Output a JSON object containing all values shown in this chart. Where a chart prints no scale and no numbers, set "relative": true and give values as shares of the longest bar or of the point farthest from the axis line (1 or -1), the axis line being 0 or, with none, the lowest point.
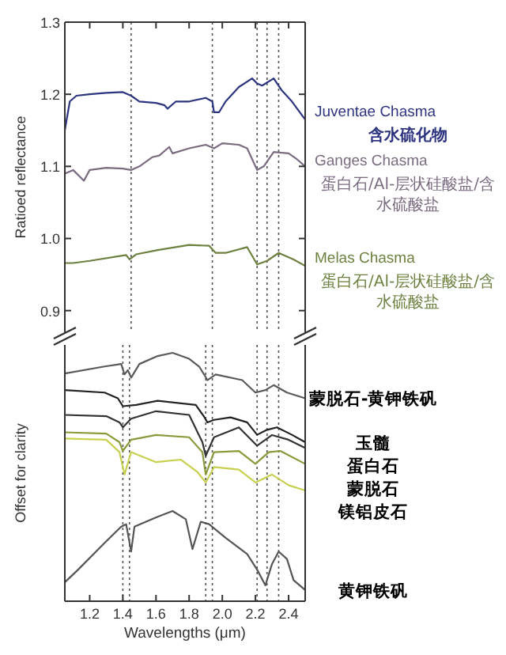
{
  "chart_data": [
    {
      "type": "line",
      "ylabel": "Ratioed reflectance",
      "xlim": [
        1.05,
        2.5
      ],
      "xticks": [
        1.2,
        1.4,
        1.6,
        1.8,
        2,
        2.2,
        2.4
      ],
      "ylim": [
        0.87,
        1.3
      ],
      "yticks": [
        0.9,
        {
          "value": 1,
          "label": "1.0"
        },
        1.1,
        1.2,
        1.3
      ],
      "tick_labels": "y",
      "line_style": "solid",
      "ref_lines": [
        {
          "axis": "x",
          "value": 1.45,
          "line_style": "dotted",
          "color": "#555555"
        },
        {
          "axis": "x",
          "value": 1.94,
          "line_style": "dotted",
          "color": "#555555"
        },
        {
          "axis": "x",
          "value": 2.21,
          "line_style": "dotted",
          "color": "#555555"
        },
        {
          "axis": "x",
          "value": 2.27,
          "line_style": "dotted",
          "color": "#555555"
        },
        {
          "axis": "x",
          "value": 2.34,
          "line_style": "dotted",
          "color": "#555555"
        }
      ],
      "annotations": [
        "含水硫化物",
        "蛋白石/Al-层状硅酸盐/含水硫酸盐",
        "蛋白石/Al-层状硅酸盐/含水硫酸盐"
      ],
      "series": [
        {
          "name": "Juventae Chasma",
          "color": "#2e3580",
          "x": [
            1.05,
            1.08,
            1.12,
            1.2,
            1.3,
            1.4,
            1.45,
            1.5,
            1.6,
            1.65,
            1.67,
            1.72,
            1.8,
            1.9,
            1.94,
            1.95,
            1.98,
            2.02,
            2.1,
            2.18,
            2.21,
            2.24,
            2.31,
            2.36,
            2.42,
            2.5
          ],
          "values": [
            1.15,
            1.19,
            1.198,
            1.2,
            1.202,
            1.203,
            1.198,
            1.19,
            1.188,
            1.185,
            1.18,
            1.19,
            1.19,
            1.195,
            1.19,
            1.175,
            1.175,
            1.19,
            1.21,
            1.222,
            1.215,
            1.212,
            1.222,
            1.205,
            1.19,
            1.165
          ]
        },
        {
          "name": "Ganges Chasma",
          "color": "#7b6b80",
          "x": [
            1.05,
            1.1,
            1.165,
            1.2,
            1.3,
            1.4,
            1.45,
            1.5,
            1.58,
            1.62,
            1.68,
            1.7,
            1.8,
            1.9,
            1.95,
            2.0,
            2.1,
            2.15,
            2.21,
            2.25,
            2.31,
            2.4,
            2.45,
            2.5
          ],
          "values": [
            1.09,
            1.095,
            1.08,
            1.095,
            1.098,
            1.097,
            1.095,
            1.1,
            1.113,
            1.115,
            1.127,
            1.118,
            1.125,
            1.13,
            1.125,
            1.132,
            1.13,
            1.125,
            1.095,
            1.1,
            1.12,
            1.118,
            1.11,
            1.1
          ]
        },
        {
          "name": "Melas Chasma",
          "color": "#6e8040",
          "x": [
            1.05,
            1.1,
            1.2,
            1.42,
            1.44,
            1.48,
            1.61,
            1.8,
            1.92,
            1.96,
            2.02,
            2.15,
            2.21,
            2.27,
            2.34,
            2.43,
            2.5
          ],
          "values": [
            0.966,
            0.966,
            0.969,
            0.977,
            0.971,
            0.978,
            0.984,
            0.991,
            0.99,
            0.98,
            0.98,
            0.988,
            0.964,
            0.969,
            0.98,
            0.971,
            0.962
          ]
        }
      ]
    },
    {
      "type": "line",
      "relative": true,
      "ylabel": "Offset for clarity",
      "xlabel": "Wavelengths (μm)",
      "xlim": [
        1.05,
        2.5
      ],
      "xticks": [
        1.2,
        1.4,
        1.6,
        1.8,
        {
          "value": 2,
          "label": "2.0"
        },
        2.2,
        2.4
      ],
      "tick_labels": "x",
      "line_style": "solid",
      "ref_lines": [
        {
          "axis": "x",
          "value": 1.4,
          "line_style": "dotted",
          "color": "#555555"
        },
        {
          "axis": "x",
          "value": 1.44,
          "line_style": "dotted",
          "color": "#555555"
        },
        {
          "axis": "x",
          "value": 1.9,
          "line_style": "dotted",
          "color": "#555555"
        },
        {
          "axis": "x",
          "value": 1.94,
          "line_style": "dotted",
          "color": "#555555"
        },
        {
          "axis": "x",
          "value": 2.21,
          "line_style": "dotted",
          "color": "#555555"
        },
        {
          "axis": "x",
          "value": 2.27,
          "line_style": "dotted",
          "color": "#555555"
        },
        {
          "axis": "x",
          "value": 2.34,
          "line_style": "dotted",
          "color": "#555555"
        }
      ],
      "series": [
        {
          "name": "蒙脱石-黄钾铁矾",
          "color": "#5a5a5a",
          "x": [
            1.05,
            1.29,
            1.39,
            1.41,
            1.43,
            1.45,
            1.5,
            1.61,
            1.7,
            1.8,
            1.86,
            1.89,
            1.91,
            1.96,
            2.12,
            2.2,
            2.26,
            2.31,
            2.39,
            2.5
          ],
          "values": [
            0.917,
            0.945,
            0.955,
            0.913,
            0.93,
            0.9,
            0.955,
            0.987,
            1.0,
            0.976,
            0.945,
            0.913,
            0.89,
            0.913,
            0.89,
            0.84,
            0.85,
            0.87,
            0.84,
            0.817
          ]
        },
        {
          "name": "玉髓",
          "color": "#222222",
          "x": [
            1.05,
            1.29,
            1.37,
            1.4,
            1.48,
            1.61,
            1.84,
            1.89,
            1.91,
            1.95,
            2.05,
            2.15,
            2.21,
            2.27,
            2.33,
            2.42,
            2.5
          ],
          "values": [
            0.85,
            0.84,
            0.817,
            0.785,
            0.79,
            0.807,
            0.79,
            0.743,
            0.72,
            0.73,
            0.74,
            0.72,
            0.67,
            0.69,
            0.7,
            0.67,
            0.64
          ]
        },
        {
          "name": "蛋白石",
          "color": "#333333",
          "x": [
            1.05,
            1.3,
            1.38,
            1.4,
            1.45,
            1.6,
            1.8,
            1.88,
            1.9,
            1.95,
            2.1,
            2.21,
            2.3,
            2.4,
            2.5
          ],
          "values": [
            0.75,
            0.745,
            0.72,
            0.7,
            0.735,
            0.765,
            0.75,
            0.64,
            0.585,
            0.66,
            0.7,
            0.626,
            0.669,
            0.65,
            0.617
          ]
        },
        {
          "name": "蒙脱石",
          "color": "#8a9a3a",
          "x": [
            1.05,
            1.3,
            1.38,
            1.4,
            1.45,
            1.6,
            1.8,
            1.88,
            1.9,
            1.95,
            2.1,
            2.2,
            2.28,
            2.35,
            2.5
          ],
          "values": [
            0.68,
            0.675,
            0.64,
            0.605,
            0.65,
            0.669,
            0.66,
            0.6,
            0.51,
            0.6,
            0.605,
            0.553,
            0.6,
            0.605,
            0.553
          ]
        },
        {
          "name": "镁铝皮石",
          "color": "#c8d050",
          "x": [
            1.05,
            1.3,
            1.38,
            1.41,
            1.45,
            1.6,
            1.75,
            1.85,
            1.9,
            1.95,
            2.1,
            2.2,
            2.3,
            2.4,
            2.5
          ],
          "values": [
            0.655,
            0.65,
            0.6,
            0.51,
            0.6,
            0.56,
            0.57,
            0.52,
            0.478,
            0.54,
            0.53,
            0.478,
            0.51,
            0.467,
            0.446
          ]
        },
        {
          "name": "黄钾铁矾",
          "color": "#555555",
          "x": [
            1.05,
            1.13,
            1.29,
            1.39,
            1.42,
            1.45,
            1.47,
            1.61,
            1.7,
            1.78,
            1.82,
            1.87,
            1.92,
            2.02,
            2.15,
            2.21,
            2.26,
            2.3,
            2.34,
            2.39,
            2.43,
            2.5
          ],
          "values": [
            0.076,
            0.127,
            0.235,
            0.3,
            0.31,
            0.2,
            0.3,
            0.34,
            0.363,
            0.33,
            0.21,
            0.32,
            0.31,
            0.255,
            0.19,
            0.127,
            0.064,
            0.15,
            0.2,
            0.17,
            0.085,
            0.045
          ]
        }
      ]
    }
  ]
}
